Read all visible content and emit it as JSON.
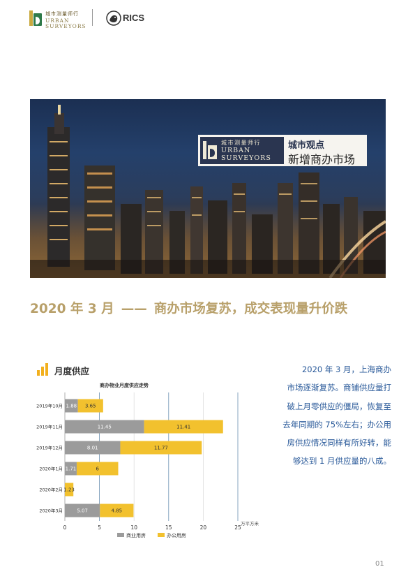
{
  "header": {
    "logo_cn": "城市测量师行",
    "logo_en_line1": "URBAN",
    "logo_en_line2": "SURVEYORS",
    "partner_logo": "RICS"
  },
  "hero": {
    "badge_logo_cn": "城市测量师行",
    "badge_logo_en_line1": "URBAN",
    "badge_logo_en_line2": "SURVEYORS",
    "badge_title": "城市观点",
    "badge_subtitle": "新增商办市场"
  },
  "headline": {
    "date": "2020 年 3 月",
    "dash": "——",
    "text": "商办市场复苏，成交表现量升价跌"
  },
  "section": {
    "icon": "bar-chart-icon",
    "label": "月度供应"
  },
  "chart_data": {
    "type": "bar",
    "orientation": "horizontal",
    "stacked": true,
    "title": "商办物业月度供应走势",
    "categories": [
      "2019年10月",
      "2019年11月",
      "2019年12月",
      "2020年1月",
      "2020年2月",
      "2020年3月"
    ],
    "series": [
      {
        "name": "商业用房",
        "color": "#9b9b9b",
        "values": [
          1.88,
          11.45,
          8.01,
          1.71,
          0,
          5.07
        ]
      },
      {
        "name": "办公用房",
        "color": "#f2c12e",
        "values": [
          3.65,
          11.41,
          11.77,
          6,
          1.23,
          4.85
        ]
      }
    ],
    "value_labels": [
      [
        "1.88",
        "11.45",
        "8.01",
        "1.71",
        "",
        "5.07"
      ],
      [
        "3.65",
        "11.41",
        "11.77",
        "6",
        "1.23",
        "4.85"
      ]
    ],
    "xlim": [
      0,
      25
    ],
    "xticks": [
      "0",
      "5",
      "10",
      "15",
      "20",
      "25"
    ],
    "unit": "万平方米",
    "legend": "bottom"
  },
  "body": {
    "lines": [
      "2020 年 3 月，上海商办",
      "市场逐渐复苏。商铺供应量打",
      "破上月零供应的僵局，恢复至",
      "去年同期的 75%左右；办公用",
      "房供应情况同样有所好转，能",
      "够达到 1 月供应量的八成。"
    ]
  },
  "footer": {
    "page_number": "01"
  },
  "colors": {
    "accent_gold": "#b8a06a",
    "body_blue": "#2a5a9a",
    "series_gray": "#9b9b9b",
    "series_yellow": "#f2c12e"
  }
}
